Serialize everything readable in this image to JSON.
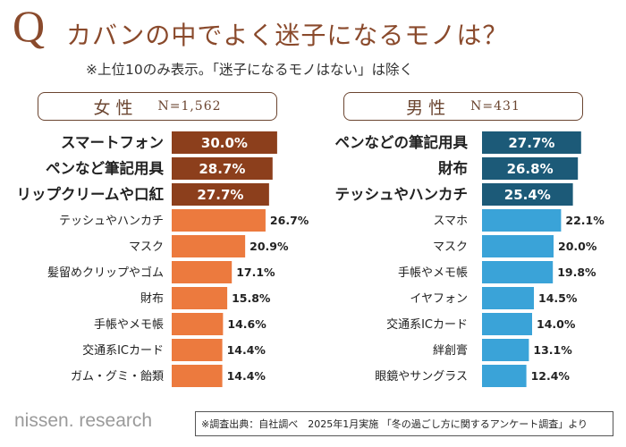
{
  "header": {
    "q_mark": "Q",
    "title": "カバンの中でよく迷子になるモノは？",
    "subtitle": "※上位10のみ表示。「迷子になるモノはない」は除く"
  },
  "panels": {
    "female": {
      "gender": "女性",
      "n": "N=1,562"
    },
    "male": {
      "gender": "男性",
      "n": "N=431"
    }
  },
  "chart_data": [
    {
      "type": "bar",
      "orientation": "horizontal",
      "title": "女性 N=1,562",
      "unit": "%",
      "categories": [
        "スマートフォン",
        "ペンなど筆記用具",
        "リップクリームや口紅",
        "テッシュやハンカチ",
        "マスク",
        "髪留めクリップやゴム",
        "財布",
        "手帳やメモ帳",
        "交通系ICカード",
        "ガム・グミ・飴類"
      ],
      "values": [
        30.0,
        28.7,
        27.7,
        26.7,
        20.9,
        17.1,
        15.8,
        14.6,
        14.4,
        14.4
      ],
      "labels": [
        "30.0%",
        "28.7%",
        "27.7%",
        "26.7%",
        "20.9%",
        "17.1%",
        "15.8%",
        "14.6%",
        "14.4%",
        "14.4%"
      ],
      "colors": {
        "top3": "#8c3f1c",
        "rest": "#ec7a3e"
      }
    },
    {
      "type": "bar",
      "orientation": "horizontal",
      "title": "男性 N=431",
      "unit": "%",
      "categories": [
        "ペンなどの筆記用具",
        "財布",
        "テッシュやハンカチ",
        "スマホ",
        "マスク",
        "手帳やメモ帳",
        "イヤフォン",
        "交通系ICカード",
        "絆創膏",
        "眼鏡やサングラス"
      ],
      "values": [
        27.7,
        26.8,
        25.4,
        22.1,
        20.0,
        19.8,
        14.5,
        14.0,
        13.1,
        12.4
      ],
      "labels": [
        "27.7%",
        "26.8%",
        "25.4%",
        "22.1%",
        "20.0%",
        "19.8%",
        "14.5%",
        "14.0%",
        "13.1%",
        "12.4%"
      ],
      "colors": {
        "top3": "#1c5a78",
        "rest": "#3aa3d8"
      }
    }
  ],
  "footer": {
    "brand": "nissen. research",
    "source": "※調査出典：自社調べ　2025年1月実施 「冬の過ごし方に関するアンケート調査」より"
  }
}
